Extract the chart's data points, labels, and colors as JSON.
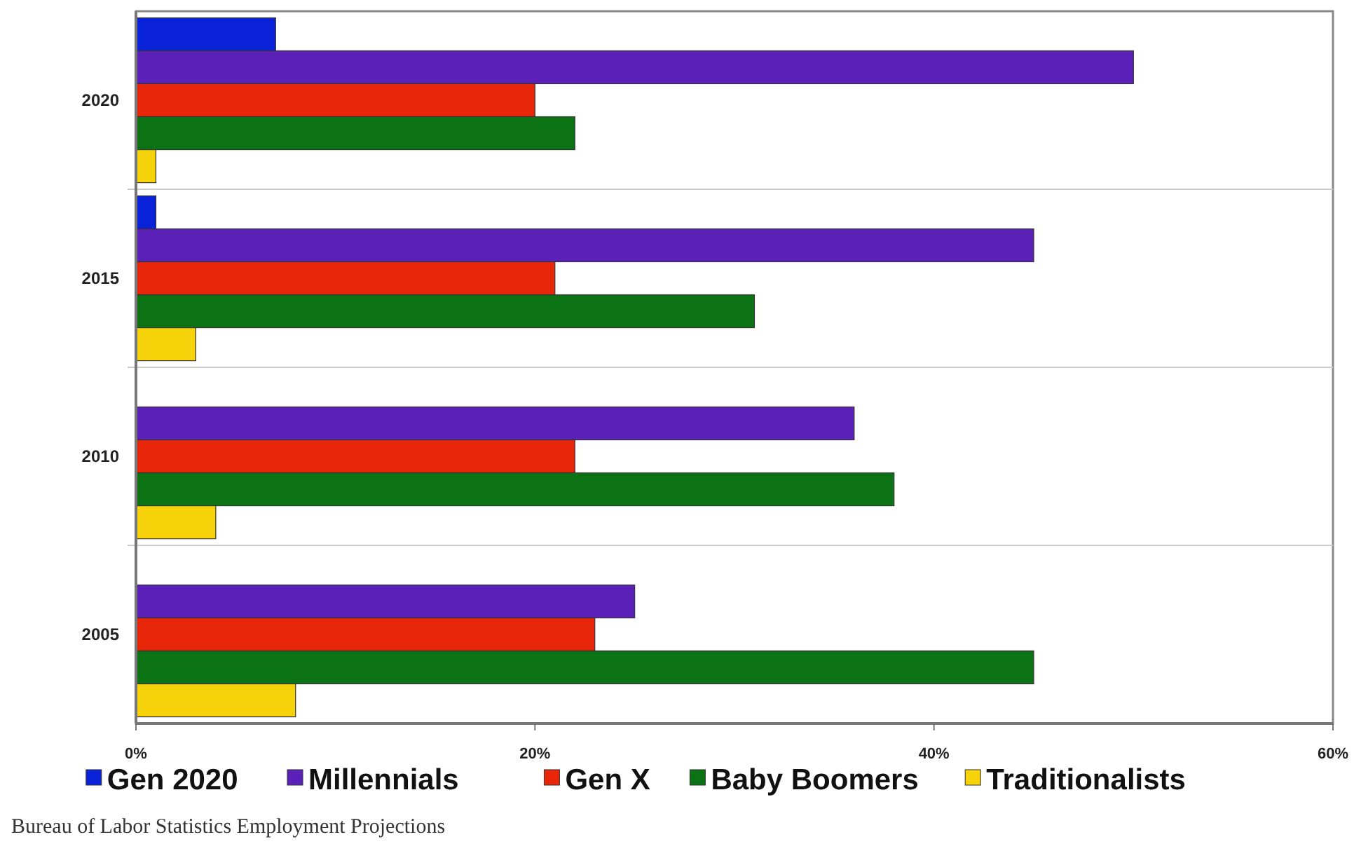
{
  "chart_data": {
    "type": "bar",
    "orientation": "horizontal",
    "categories": [
      "2020",
      "2015",
      "2010",
      "2005"
    ],
    "series": [
      {
        "name": "Gen 2020",
        "color": "#0a22d8",
        "values": [
          7,
          1,
          null,
          null
        ]
      },
      {
        "name": "Millennials",
        "color": "#5a20b8",
        "values": [
          50,
          45,
          36,
          25
        ]
      },
      {
        "name": "Gen X",
        "color": "#e8260a",
        "values": [
          20,
          21,
          22,
          23
        ]
      },
      {
        "name": "Baby Boomers",
        "color": "#0b7313",
        "values": [
          22,
          31,
          38,
          45
        ]
      },
      {
        "name": "Traditionalists",
        "color": "#f5d20a",
        "values": [
          1,
          3,
          4,
          8
        ]
      }
    ],
    "xlim": [
      0,
      60
    ],
    "xticks": [
      {
        "value": 0,
        "label": "0%"
      },
      {
        "value": 20,
        "label": "20%"
      },
      {
        "value": 40,
        "label": "40%"
      },
      {
        "value": 60,
        "label": "60%"
      }
    ],
    "legend": "bottom",
    "annotations": [
      "Bureau of Labor Statistics Employment Projections"
    ]
  }
}
